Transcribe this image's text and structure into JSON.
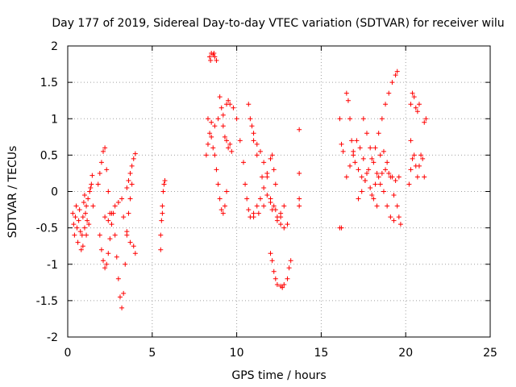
{
  "chart_data": {
    "type": "scatter",
    "title": "Day 177 of 2019, Sidereal Day-to-day VTEC variation (SDTVAR) for receiver wilu",
    "xlabel": "GPS time / hours",
    "ylabel": "SDTVAR / TECUs",
    "xlim": [
      0,
      25
    ],
    "ylim": [
      -2,
      2
    ],
    "xticks": [
      0,
      5,
      10,
      15,
      20,
      25
    ],
    "yticks": [
      -2,
      -1.5,
      -1,
      -0.5,
      0,
      0.5,
      1,
      1.5,
      2
    ],
    "xtick_labels": [
      "0",
      "5",
      "10",
      "15",
      "20",
      "25"
    ],
    "ytick_labels": [
      "-2",
      "-1.5",
      "-1",
      "-0.5",
      "0",
      "0.5",
      "1",
      "1.5",
      "2"
    ],
    "grid": true,
    "marker": "+",
    "series": [
      {
        "name": "SDTVAR",
        "color": "#ff0000",
        "points": [
          [
            0.3,
            -0.3
          ],
          [
            0.35,
            -0.45
          ],
          [
            0.4,
            -0.6
          ],
          [
            0.45,
            -0.35
          ],
          [
            0.5,
            -0.2
          ],
          [
            0.55,
            -0.5
          ],
          [
            0.6,
            -0.7
          ],
          [
            0.65,
            -0.4
          ],
          [
            0.7,
            -0.25
          ],
          [
            0.75,
            -0.55
          ],
          [
            0.8,
            -0.8
          ],
          [
            0.85,
            -0.6
          ],
          [
            0.9,
            -0.35
          ],
          [
            0.95,
            -0.15
          ],
          [
            1.0,
            -0.05
          ],
          [
            1.05,
            -0.3
          ],
          [
            1.1,
            -0.6
          ],
          [
            1.15,
            -0.4
          ],
          [
            1.2,
            -0.1
          ],
          [
            1.3,
            0.0
          ],
          [
            1.4,
            0.1
          ],
          [
            1.5,
            -0.2
          ],
          [
            0.9,
            -0.75
          ],
          [
            1.0,
            -0.5
          ],
          [
            1.1,
            -0.2
          ],
          [
            1.25,
            -0.45
          ],
          [
            1.35,
            0.05
          ],
          [
            1.45,
            0.22
          ],
          [
            1.8,
            0.1
          ],
          [
            1.9,
            0.25
          ],
          [
            2.0,
            0.4
          ],
          [
            2.1,
            0.55
          ],
          [
            2.2,
            0.6
          ],
          [
            2.3,
            0.3
          ],
          [
            2.4,
            0.0
          ],
          [
            2.5,
            -0.3
          ],
          [
            1.9,
            -0.6
          ],
          [
            2.0,
            -0.8
          ],
          [
            2.1,
            -0.95
          ],
          [
            2.2,
            -1.05
          ],
          [
            2.3,
            -1.0
          ],
          [
            2.4,
            -0.85
          ],
          [
            2.5,
            -0.65
          ],
          [
            2.6,
            -0.45
          ],
          [
            2.7,
            -0.3
          ],
          [
            2.8,
            -0.6
          ],
          [
            2.9,
            -0.9
          ],
          [
            3.0,
            -1.2
          ],
          [
            3.1,
            -1.45
          ],
          [
            3.2,
            -1.6
          ],
          [
            3.3,
            -1.4
          ],
          [
            3.4,
            -1.0
          ],
          [
            3.5,
            -0.6
          ],
          [
            3.6,
            -0.3
          ],
          [
            3.7,
            -0.1
          ],
          [
            2.2,
            -0.35
          ],
          [
            2.4,
            -0.4
          ],
          [
            2.6,
            -0.3
          ],
          [
            2.8,
            -0.2
          ],
          [
            3.0,
            -0.15
          ],
          [
            3.2,
            -0.1
          ],
          [
            3.3,
            -0.35
          ],
          [
            3.5,
            -0.55
          ],
          [
            3.7,
            -0.7
          ],
          [
            3.9,
            -0.75
          ],
          [
            3.5,
            0.05
          ],
          [
            3.6,
            0.15
          ],
          [
            3.7,
            0.25
          ],
          [
            3.8,
            0.35
          ],
          [
            3.9,
            0.45
          ],
          [
            4.0,
            0.52
          ],
          [
            3.8,
            0.1
          ],
          [
            4.0,
            -0.85
          ],
          [
            5.5,
            -0.6
          ],
          [
            5.55,
            -0.4
          ],
          [
            5.6,
            -0.2
          ],
          [
            5.65,
            0.0
          ],
          [
            5.7,
            0.1
          ],
          [
            5.75,
            0.15
          ],
          [
            5.5,
            -0.8
          ],
          [
            5.6,
            -0.3
          ],
          [
            8.4,
            1.85
          ],
          [
            8.5,
            1.9
          ],
          [
            8.6,
            1.88
          ],
          [
            8.7,
            1.85
          ],
          [
            8.8,
            1.8
          ],
          [
            8.45,
            1.8
          ],
          [
            8.65,
            1.9
          ],
          [
            8.2,
            0.5
          ],
          [
            8.3,
            0.65
          ],
          [
            8.4,
            0.8
          ],
          [
            8.5,
            0.75
          ],
          [
            8.6,
            0.6
          ],
          [
            8.7,
            0.5
          ],
          [
            8.8,
            0.3
          ],
          [
            8.9,
            0.1
          ],
          [
            9.0,
            -0.1
          ],
          [
            9.1,
            -0.25
          ],
          [
            9.2,
            -0.3
          ],
          [
            9.3,
            -0.2
          ],
          [
            9.4,
            0.0
          ],
          [
            8.3,
            1.0
          ],
          [
            8.5,
            0.95
          ],
          [
            8.7,
            0.9
          ],
          [
            8.9,
            1.0
          ],
          [
            9.0,
            1.3
          ],
          [
            9.1,
            1.15
          ],
          [
            9.2,
            0.9
          ],
          [
            9.3,
            0.75
          ],
          [
            9.4,
            0.7
          ],
          [
            9.5,
            0.6
          ],
          [
            9.6,
            0.65
          ],
          [
            9.7,
            0.55
          ],
          [
            9.2,
            1.05
          ],
          [
            9.4,
            1.2
          ],
          [
            9.5,
            1.25
          ],
          [
            9.6,
            1.2
          ],
          [
            9.8,
            1.15
          ],
          [
            10.0,
            1.0
          ],
          [
            10.2,
            0.7
          ],
          [
            10.4,
            0.4
          ],
          [
            10.5,
            0.1
          ],
          [
            10.6,
            -0.1
          ],
          [
            10.7,
            -0.25
          ],
          [
            10.8,
            -0.35
          ],
          [
            11.0,
            -0.3
          ],
          [
            11.2,
            -0.2
          ],
          [
            11.4,
            -0.1
          ],
          [
            11.6,
            0.05
          ],
          [
            11.8,
            0.25
          ],
          [
            12.0,
            0.45
          ],
          [
            12.1,
            0.5
          ],
          [
            12.2,
            0.3
          ],
          [
            12.3,
            0.1
          ],
          [
            10.9,
            0.9
          ],
          [
            11.0,
            0.8
          ],
          [
            11.2,
            0.65
          ],
          [
            11.4,
            0.55
          ],
          [
            11.6,
            0.4
          ],
          [
            11.8,
            0.2
          ],
          [
            12.0,
            -0.1
          ],
          [
            12.2,
            -0.2
          ],
          [
            12.4,
            -0.35
          ],
          [
            12.6,
            -0.45
          ],
          [
            12.8,
            -0.5
          ],
          [
            10.7,
            1.2
          ],
          [
            10.8,
            1.0
          ],
          [
            11.0,
            0.7
          ],
          [
            11.2,
            0.5
          ],
          [
            11.5,
            0.2
          ],
          [
            11.8,
            -0.05
          ],
          [
            12.1,
            -0.25
          ],
          [
            12.4,
            -0.4
          ],
          [
            12.6,
            -0.3
          ],
          [
            12.8,
            -0.2
          ],
          [
            13.0,
            -0.45
          ],
          [
            11.0,
            -0.35
          ],
          [
            11.3,
            -0.3
          ],
          [
            11.6,
            -0.2
          ],
          [
            12.0,
            -0.15
          ],
          [
            12.3,
            -0.25
          ],
          [
            12.6,
            -0.35
          ],
          [
            12.0,
            -0.85
          ],
          [
            12.1,
            -0.95
          ],
          [
            12.2,
            -1.1
          ],
          [
            12.3,
            -1.2
          ],
          [
            12.4,
            -1.28
          ],
          [
            12.6,
            -1.3
          ],
          [
            12.8,
            -1.28
          ],
          [
            13.0,
            -1.2
          ],
          [
            13.1,
            -1.05
          ],
          [
            13.2,
            -0.95
          ],
          [
            12.7,
            -1.32
          ],
          [
            13.7,
            0.85
          ],
          [
            13.7,
            0.25
          ],
          [
            13.7,
            -0.1
          ],
          [
            13.7,
            -0.2
          ],
          [
            16.1,
            -0.5
          ],
          [
            16.2,
            -0.5
          ],
          [
            16.1,
            1.0
          ],
          [
            16.2,
            0.65
          ],
          [
            16.3,
            0.55
          ],
          [
            16.5,
            1.35
          ],
          [
            16.6,
            1.25
          ],
          [
            16.7,
            1.0
          ],
          [
            16.8,
            0.7
          ],
          [
            16.9,
            0.5
          ],
          [
            17.0,
            0.4
          ],
          [
            17.2,
            0.3
          ],
          [
            17.4,
            0.2
          ],
          [
            17.6,
            0.15
          ],
          [
            16.5,
            0.2
          ],
          [
            16.7,
            0.35
          ],
          [
            16.9,
            0.55
          ],
          [
            17.1,
            0.7
          ],
          [
            17.3,
            0.6
          ],
          [
            17.5,
            0.45
          ],
          [
            17.7,
            0.25
          ],
          [
            17.9,
            0.05
          ],
          [
            18.1,
            -0.1
          ],
          [
            18.3,
            -0.2
          ],
          [
            17.5,
            1.0
          ],
          [
            17.7,
            0.8
          ],
          [
            17.9,
            0.6
          ],
          [
            18.1,
            0.4
          ],
          [
            18.3,
            0.25
          ],
          [
            18.5,
            0.1
          ],
          [
            18.7,
            0.0
          ],
          [
            18.9,
            -0.2
          ],
          [
            19.1,
            -0.35
          ],
          [
            19.3,
            -0.4
          ],
          [
            17.2,
            -0.1
          ],
          [
            17.4,
            0.0
          ],
          [
            17.6,
            0.15
          ],
          [
            17.8,
            0.3
          ],
          [
            18.0,
            0.45
          ],
          [
            18.2,
            0.6
          ],
          [
            18.4,
            0.8
          ],
          [
            18.6,
            1.0
          ],
          [
            18.8,
            1.2
          ],
          [
            19.0,
            1.35
          ],
          [
            19.2,
            1.5
          ],
          [
            19.4,
            1.6
          ],
          [
            19.5,
            1.65
          ],
          [
            18.0,
            -0.05
          ],
          [
            18.2,
            0.1
          ],
          [
            18.4,
            0.2
          ],
          [
            18.6,
            0.25
          ],
          [
            18.8,
            0.3
          ],
          [
            19.0,
            0.25
          ],
          [
            19.2,
            0.2
          ],
          [
            19.4,
            0.15
          ],
          [
            19.6,
            0.2
          ],
          [
            18.5,
            0.5
          ],
          [
            18.7,
            0.55
          ],
          [
            18.9,
            0.4
          ],
          [
            19.1,
            0.2
          ],
          [
            19.3,
            -0.05
          ],
          [
            19.5,
            -0.2
          ],
          [
            19.6,
            -0.35
          ],
          [
            19.7,
            -0.45
          ],
          [
            20.2,
            0.1
          ],
          [
            20.3,
            0.3
          ],
          [
            20.4,
            0.45
          ],
          [
            20.5,
            0.5
          ],
          [
            20.6,
            0.35
          ],
          [
            20.7,
            0.2
          ],
          [
            20.8,
            0.35
          ],
          [
            20.9,
            0.5
          ],
          [
            21.0,
            0.45
          ],
          [
            21.1,
            0.2
          ],
          [
            20.3,
            1.2
          ],
          [
            20.4,
            1.35
          ],
          [
            20.5,
            1.3
          ],
          [
            20.6,
            1.15
          ],
          [
            20.7,
            1.1
          ],
          [
            20.8,
            1.2
          ],
          [
            20.3,
            0.7
          ],
          [
            21.1,
            0.95
          ],
          [
            21.2,
            1.0
          ]
        ]
      }
    ]
  }
}
